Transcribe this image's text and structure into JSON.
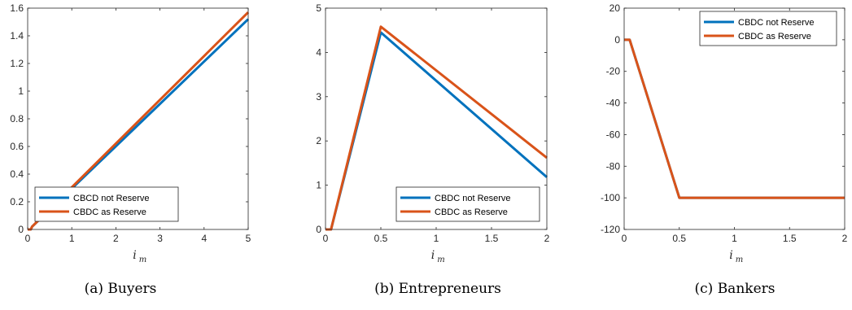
{
  "chart_data": [
    {
      "type": "line",
      "caption": "(a)  Buyers",
      "xlabel": "i",
      "xlabel_sub": "m",
      "xlim": [
        0,
        5
      ],
      "ylim": [
        0,
        1.6
      ],
      "xticks": [
        0,
        1,
        2,
        3,
        4,
        5
      ],
      "yticks": [
        0,
        0.2,
        0.4,
        0.6,
        0.8,
        1,
        1.2,
        1.4,
        1.6
      ],
      "legend_position": "bottom-left",
      "series": [
        {
          "name": "CBCD not Reserve",
          "color": "#0072BD",
          "x": [
            0,
            0.07,
            0.1,
            5
          ],
          "y": [
            0,
            0,
            0.02,
            1.52
          ]
        },
        {
          "name": "CBDC as Reserve",
          "color": "#D95319",
          "x": [
            0,
            0.07,
            0.1,
            5
          ],
          "y": [
            0,
            0,
            0.02,
            1.57
          ]
        }
      ]
    },
    {
      "type": "line",
      "caption": "(b)  Entrepreneurs",
      "xlabel": "i",
      "xlabel_sub": "m",
      "xlim": [
        0,
        2
      ],
      "ylim": [
        0,
        5
      ],
      "xticks": [
        0,
        0.5,
        1,
        1.5,
        2
      ],
      "yticks": [
        0,
        1,
        2,
        3,
        4,
        5
      ],
      "legend_position": "bottom-right",
      "series": [
        {
          "name": "CBDC not Reserve",
          "color": "#0072BD",
          "x": [
            0,
            0.05,
            0.5,
            2
          ],
          "y": [
            0,
            0,
            4.45,
            1.18
          ]
        },
        {
          "name": "CBDC as Reserve",
          "color": "#D95319",
          "x": [
            0,
            0.05,
            0.5,
            2
          ],
          "y": [
            0,
            0,
            4.58,
            1.62
          ]
        }
      ]
    },
    {
      "type": "line",
      "caption": "(c)  Bankers",
      "xlabel": "i",
      "xlabel_sub": "m",
      "xlim": [
        0,
        2
      ],
      "ylim": [
        -120,
        20
      ],
      "xticks": [
        0,
        0.5,
        1,
        1.5,
        2
      ],
      "yticks": [
        -120,
        -100,
        -80,
        -60,
        -40,
        -20,
        0,
        20
      ],
      "legend_position": "top-right",
      "series": [
        {
          "name": "CBDC not Reserve",
          "color": "#0072BD",
          "x": [
            0,
            0.05,
            0.5,
            2
          ],
          "y": [
            0,
            0,
            -100,
            -100
          ]
        },
        {
          "name": "CBDC as Reserve",
          "color": "#D95319",
          "x": [
            0,
            0.05,
            0.5,
            2
          ],
          "y": [
            0,
            0,
            -100,
            -100
          ]
        }
      ]
    }
  ]
}
